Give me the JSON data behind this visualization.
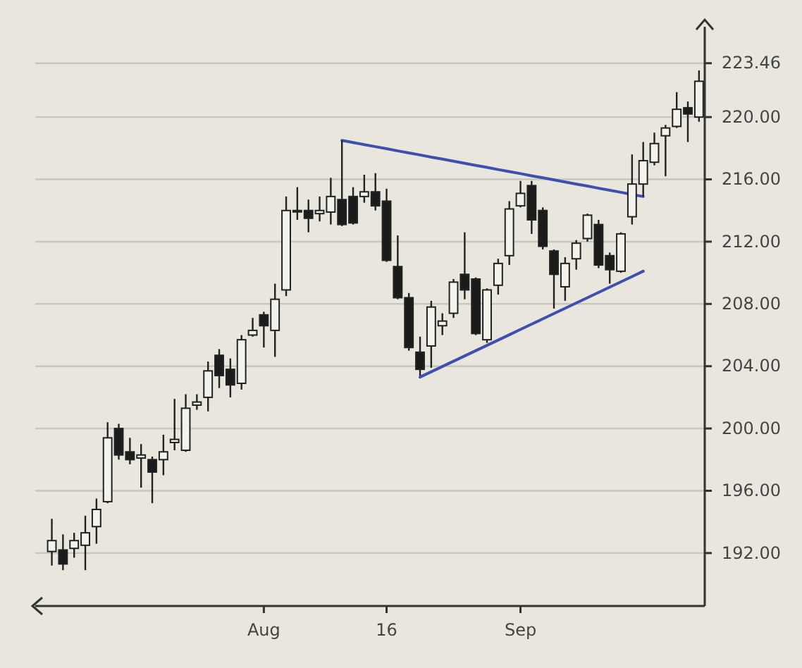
{
  "chart_data": {
    "type": "candlestick",
    "categories": [
      null,
      null,
      null,
      null,
      null,
      null,
      null,
      null,
      null,
      null,
      null,
      null,
      null,
      null,
      null,
      null,
      null,
      null,
      null,
      "Aug",
      null,
      null,
      null,
      null,
      null,
      null,
      null,
      null,
      null,
      null,
      "16",
      null,
      null,
      null,
      null,
      null,
      null,
      null,
      null,
      null,
      null,
      null,
      "Sep",
      null,
      null,
      null,
      null,
      null,
      null,
      null,
      null,
      null,
      null,
      null,
      null,
      null,
      null,
      null,
      null
    ],
    "ohlc": [
      [
        192.1,
        194.2,
        191.2,
        192.8
      ],
      [
        192.2,
        193.2,
        190.9,
        191.3
      ],
      [
        192.3,
        193.3,
        191.7,
        192.8
      ],
      [
        192.5,
        194.4,
        190.9,
        193.3
      ],
      [
        193.7,
        195.5,
        192.6,
        194.8
      ],
      [
        195.3,
        200.4,
        195.2,
        199.4
      ],
      [
        200.0,
        200.3,
        198.0,
        198.3
      ],
      [
        198.5,
        199.4,
        197.7,
        198.0
      ],
      [
        198.1,
        199.0,
        196.2,
        198.3
      ],
      [
        198.0,
        198.2,
        195.2,
        197.2
      ],
      [
        198.0,
        199.6,
        197.0,
        198.5
      ],
      [
        199.1,
        201.9,
        198.6,
        199.3
      ],
      [
        198.6,
        202.2,
        198.5,
        201.3
      ],
      [
        201.5,
        202.2,
        201.2,
        201.7
      ],
      [
        202.0,
        204.3,
        201.1,
        203.7
      ],
      [
        204.7,
        205.1,
        202.6,
        203.4
      ],
      [
        203.8,
        204.5,
        202.0,
        202.8
      ],
      [
        202.9,
        206.0,
        202.5,
        205.7
      ],
      [
        206.0,
        207.1,
        205.9,
        206.3
      ],
      [
        207.3,
        207.5,
        205.2,
        206.6
      ],
      [
        206.3,
        209.3,
        204.6,
        208.3
      ],
      [
        208.9,
        214.9,
        208.5,
        214.0
      ],
      [
        214.0,
        215.5,
        213.4,
        214.0
      ],
      [
        214.0,
        214.7,
        212.6,
        213.5
      ],
      [
        213.8,
        214.9,
        213.3,
        214.0
      ],
      [
        213.9,
        216.1,
        213.1,
        214.9
      ],
      [
        214.7,
        218.5,
        213.0,
        213.1
      ],
      [
        214.9,
        215.5,
        213.1,
        213.2
      ],
      [
        214.9,
        216.3,
        214.5,
        215.2
      ],
      [
        215.2,
        216.4,
        214.0,
        214.3
      ],
      [
        214.6,
        215.4,
        210.7,
        210.8
      ],
      [
        210.4,
        212.4,
        208.3,
        208.4
      ],
      [
        208.4,
        208.7,
        205.0,
        205.2
      ],
      [
        204.9,
        205.9,
        203.4,
        203.8
      ],
      [
        205.3,
        208.2,
        203.9,
        207.8
      ],
      [
        206.6,
        207.4,
        206.0,
        206.9
      ],
      [
        207.4,
        209.6,
        207.1,
        209.4
      ],
      [
        209.9,
        212.6,
        208.3,
        208.9
      ],
      [
        209.6,
        209.7,
        206.0,
        206.1
      ],
      [
        205.7,
        209.0,
        205.5,
        208.9
      ],
      [
        209.2,
        210.9,
        208.6,
        210.6
      ],
      [
        211.1,
        214.6,
        210.5,
        214.1
      ],
      [
        214.3,
        215.9,
        214.2,
        215.1
      ],
      [
        215.6,
        215.9,
        212.5,
        213.4
      ],
      [
        214.0,
        214.2,
        211.5,
        211.7
      ],
      [
        211.4,
        211.5,
        207.7,
        209.9
      ],
      [
        209.1,
        211.0,
        208.2,
        210.6
      ],
      [
        210.9,
        212.1,
        210.2,
        211.9
      ],
      [
        212.2,
        213.8,
        212.0,
        213.7
      ],
      [
        213.1,
        213.4,
        210.3,
        210.5
      ],
      [
        211.1,
        211.3,
        209.3,
        210.2
      ],
      [
        210.1,
        212.6,
        210.0,
        212.5
      ],
      [
        213.6,
        217.6,
        213.1,
        215.7
      ],
      [
        215.7,
        218.4,
        214.9,
        217.2
      ],
      [
        217.1,
        219.0,
        216.9,
        218.3
      ],
      [
        218.8,
        219.5,
        216.2,
        219.3
      ],
      [
        219.4,
        221.6,
        219.3,
        220.5
      ],
      [
        220.6,
        221.0,
        218.4,
        220.2
      ],
      [
        220.0,
        223.0,
        219.7,
        222.3
      ]
    ],
    "series": [
      {
        "type": "line",
        "color": "#3f4fb0",
        "values": [
          null,
          null,
          null,
          null,
          null,
          null,
          null,
          null,
          null,
          null,
          null,
          null,
          null,
          null,
          null,
          null,
          null,
          null,
          null,
          null,
          null,
          null,
          null,
          null,
          null,
          null,
          218.5,
          218.37,
          218.23,
          218.1,
          217.97,
          217.83,
          217.7,
          217.57,
          217.43,
          217.3,
          217.17,
          217.03,
          216.9,
          216.77,
          216.63,
          216.5,
          216.37,
          216.23,
          216.1,
          215.97,
          215.83,
          215.7,
          215.57,
          215.43,
          215.3,
          215.17,
          215.03,
          214.9,
          null,
          null,
          null,
          null,
          null
        ]
      },
      {
        "type": "line",
        "color": "#3f4fb0",
        "values": [
          null,
          null,
          null,
          null,
          null,
          null,
          null,
          null,
          null,
          null,
          null,
          null,
          null,
          null,
          null,
          null,
          null,
          null,
          null,
          null,
          null,
          null,
          null,
          null,
          null,
          null,
          null,
          null,
          null,
          null,
          null,
          null,
          null,
          203.3,
          203.64,
          203.98,
          204.32,
          204.66,
          205.0,
          205.34,
          205.68,
          206.02,
          206.36,
          206.7,
          207.04,
          207.38,
          207.72,
          208.06,
          208.4,
          208.74,
          209.08,
          209.42,
          209.76,
          210.1,
          null,
          null,
          null,
          null,
          null
        ]
      }
    ],
    "ylim": [
      188.6,
      225.8
    ],
    "yticks": [
      {
        "value": 192,
        "label": "192.00"
      },
      {
        "value": 196,
        "label": "196.00"
      },
      {
        "value": 200,
        "label": "200.00"
      },
      {
        "value": 204,
        "label": "204.00"
      },
      {
        "value": 208,
        "label": "208.00"
      },
      {
        "value": 212,
        "label": "212.00"
      },
      {
        "value": 216,
        "label": "216.00"
      },
      {
        "value": 220,
        "label": "220.00"
      },
      {
        "value": 223.46,
        "label": "223.46"
      }
    ],
    "grid": "y"
  }
}
